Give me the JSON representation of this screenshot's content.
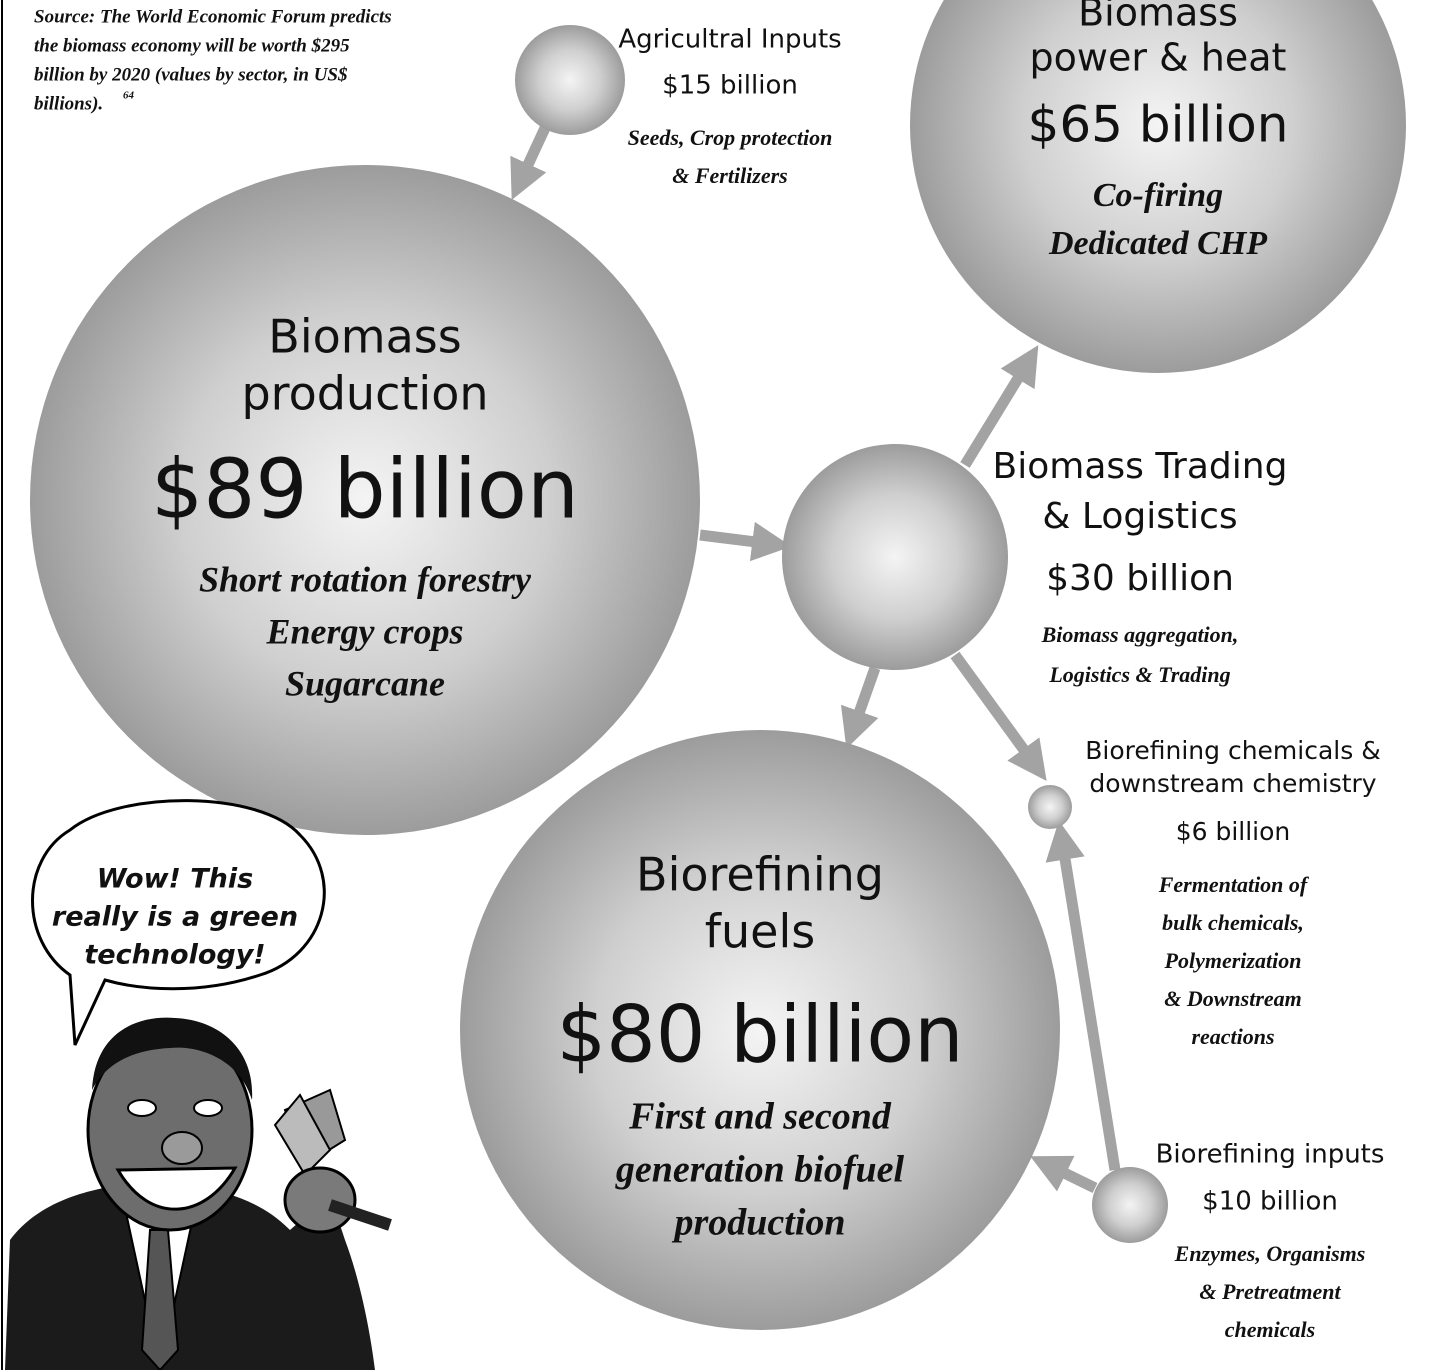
{
  "source": {
    "lines": [
      "Source: The World Economic Forum predicts",
      "the biomass economy will be worth $295",
      "billion by 2020 (values by sector, in US$",
      "billions)."
    ],
    "footnote": "64"
  },
  "speech": {
    "lines": [
      "Wow! This",
      "really is a green",
      "technology!"
    ]
  },
  "nodes": [
    {
      "title": [
        "Agricultral Inputs"
      ],
      "value": "$15 billion",
      "description": [
        "Seeds, Crop protection",
        "& Fertilizers"
      ]
    },
    {
      "title": [
        "Biomass",
        "power & heat"
      ],
      "value": "$65 billion",
      "description": [
        "Co-firing",
        "Dedicated CHP"
      ]
    },
    {
      "title": [
        "Biomass",
        "production"
      ],
      "value": "$89 billion",
      "description": [
        "Short rotation forestry",
        "Energy crops",
        "Sugarcane"
      ]
    },
    {
      "title": [
        "Biomass Trading",
        "& Logistics"
      ],
      "value": "$30 billion",
      "description": [
        "Biomass aggregation,",
        "Logistics & Trading"
      ]
    },
    {
      "title": [
        "Biorefining chemicals &",
        "downstream chemistry"
      ],
      "value": "$6 billion",
      "description": [
        "Fermentation of",
        "bulk chemicals,",
        "Polymerization",
        "& Downstream",
        "reactions"
      ]
    },
    {
      "title": [
        "Biorefining",
        "fuels"
      ],
      "value": "$80 billion",
      "description": [
        "First and second",
        "generation biofuel",
        "production"
      ]
    },
    {
      "title": [
        "Biorefining inputs"
      ],
      "value": "$10 billion",
      "description": [
        "Enzymes, Organisms",
        "& Pretreatment",
        "chemicals"
      ]
    }
  ]
}
